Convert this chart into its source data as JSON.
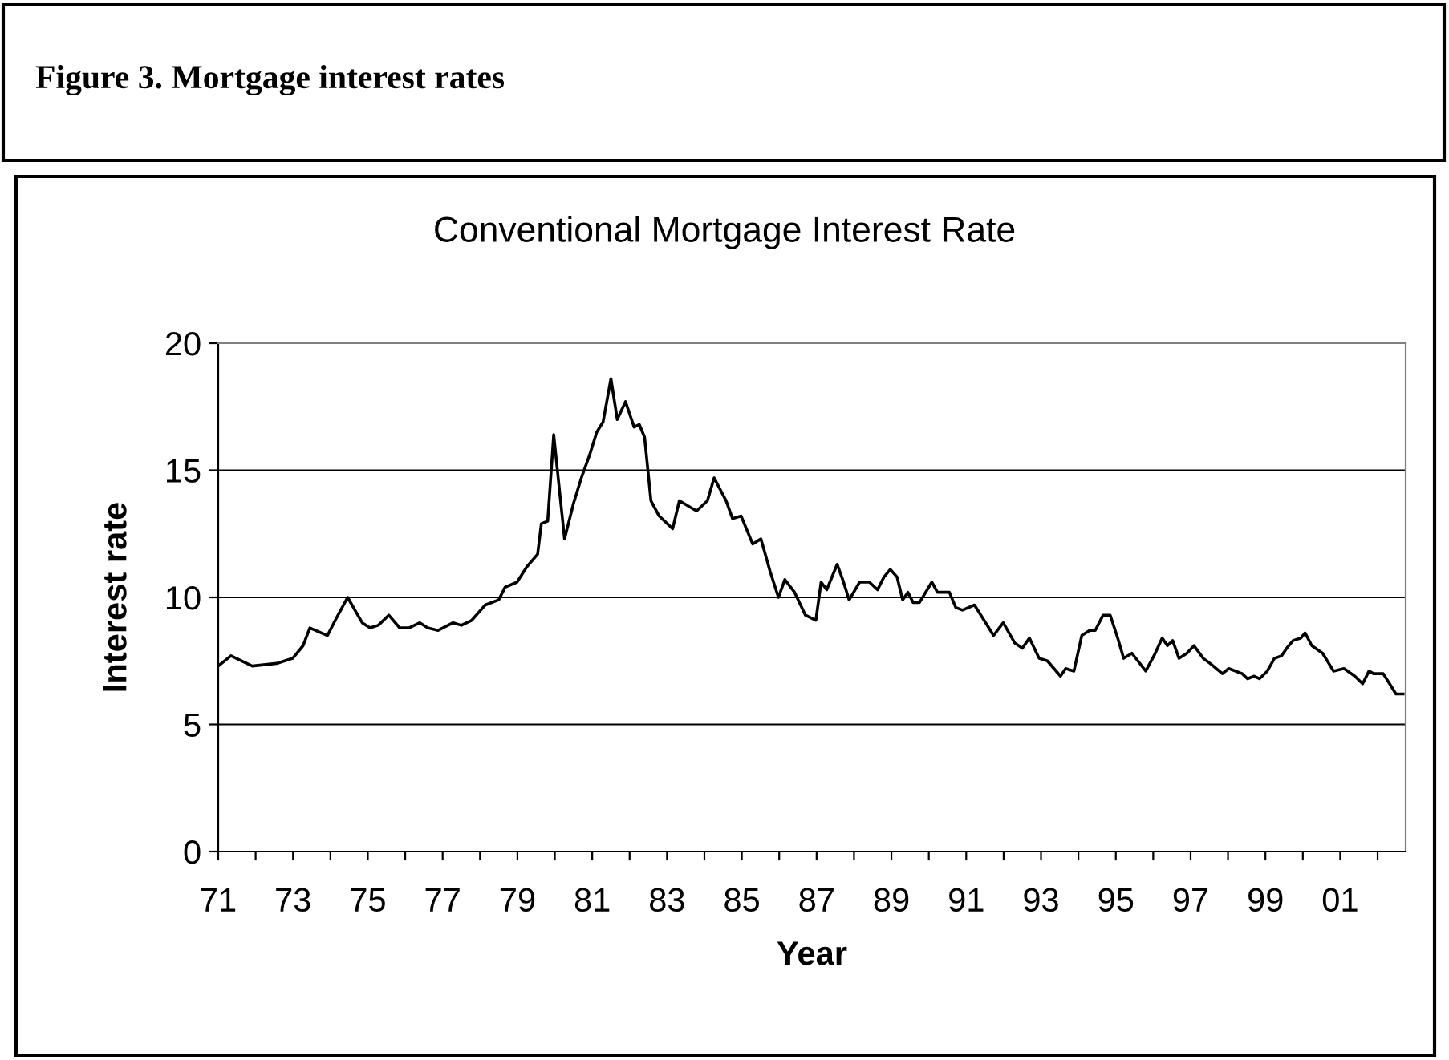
{
  "chart_data": {
    "type": "line",
    "title": "Figure 3. Mortgage interest rates",
    "subtitle": "Conventional Mortgage Interest Rate",
    "xlabel": "Year",
    "ylabel": "Interest rate",
    "xlim": [
      1971,
      2002.75
    ],
    "xticks": [
      {
        "value": 1971,
        "label": "71"
      },
      {
        "value": 1972,
        "label": null
      },
      {
        "value": 1973,
        "label": "73"
      },
      {
        "value": 1974,
        "label": null
      },
      {
        "value": 1975,
        "label": "75"
      },
      {
        "value": 1976,
        "label": null
      },
      {
        "value": 1977,
        "label": "77"
      },
      {
        "value": 1978,
        "label": null
      },
      {
        "value": 1979,
        "label": "79"
      },
      {
        "value": 1980,
        "label": null
      },
      {
        "value": 1981,
        "label": "81"
      },
      {
        "value": 1982,
        "label": null
      },
      {
        "value": 1983,
        "label": "83"
      },
      {
        "value": 1984,
        "label": null
      },
      {
        "value": 1985,
        "label": "85"
      },
      {
        "value": 1986,
        "label": null
      },
      {
        "value": 1987,
        "label": "87"
      },
      {
        "value": 1988,
        "label": null
      },
      {
        "value": 1989,
        "label": "89"
      },
      {
        "value": 1990,
        "label": null
      },
      {
        "value": 1991,
        "label": "91"
      },
      {
        "value": 1992,
        "label": null
      },
      {
        "value": 1993,
        "label": "93"
      },
      {
        "value": 1994,
        "label": null
      },
      {
        "value": 1995,
        "label": "95"
      },
      {
        "value": 1996,
        "label": null
      },
      {
        "value": 1997,
        "label": "97"
      },
      {
        "value": 1998,
        "label": null
      },
      {
        "value": 1999,
        "label": "99"
      },
      {
        "value": 2000,
        "label": null
      },
      {
        "value": 2001,
        "label": "01"
      },
      {
        "value": 2002,
        "label": null
      }
    ],
    "ylim": [
      0,
      20
    ],
    "yticks": [
      0,
      5,
      10,
      15,
      20
    ],
    "grid": "y",
    "marker": "none",
    "line_style": "solid",
    "series": [
      {
        "color": "#000000",
        "x": [
          1971.0,
          1971.34,
          1971.91,
          1972.56,
          1972.99,
          1973.27,
          1973.45,
          1973.92,
          1974.13,
          1974.46,
          1974.85,
          1975.06,
          1975.28,
          1975.56,
          1975.85,
          1976.1,
          1976.39,
          1976.6,
          1976.88,
          1977.28,
          1977.5,
          1977.78,
          1978.14,
          1978.5,
          1978.67,
          1978.99,
          1979.25,
          1979.54,
          1979.64,
          1979.81,
          1979.97,
          1980.26,
          1980.5,
          1980.71,
          1980.93,
          1981.12,
          1981.29,
          1981.5,
          1981.67,
          1981.89,
          1982.12,
          1982.26,
          1982.4,
          1982.57,
          1982.79,
          1983.15,
          1983.33,
          1983.79,
          1984.08,
          1984.26,
          1984.58,
          1984.75,
          1984.98,
          1985.29,
          1985.51,
          1985.76,
          1985.98,
          1986.15,
          1986.41,
          1986.7,
          1986.98,
          1987.12,
          1987.27,
          1987.55,
          1987.72,
          1987.87,
          1988.15,
          1988.41,
          1988.63,
          1988.8,
          1988.97,
          1989.15,
          1989.3,
          1989.44,
          1989.58,
          1989.75,
          1990.08,
          1990.23,
          1990.55,
          1990.72,
          1990.9,
          1991.22,
          1991.52,
          1991.73,
          1991.99,
          1992.3,
          1992.5,
          1992.69,
          1992.95,
          1993.17,
          1993.52,
          1993.66,
          1993.88,
          1994.09,
          1994.3,
          1994.45,
          1994.66,
          1994.85,
          1995.05,
          1995.21,
          1995.43,
          1995.8,
          1996.02,
          1996.24,
          1996.38,
          1996.52,
          1996.69,
          1996.9,
          1997.09,
          1997.34,
          1997.52,
          1997.85,
          1998.02,
          1998.38,
          1998.52,
          1998.7,
          1998.84,
          1999.05,
          1999.24,
          1999.43,
          1999.57,
          1999.74,
          1999.95,
          2000.06,
          2000.24,
          2000.53,
          2000.82,
          2001.1,
          2001.39,
          2001.6,
          2001.77,
          2001.89,
          2002.15,
          2002.32,
          2002.49,
          2002.68
        ],
        "values": [
          7.3,
          7.7,
          7.3,
          7.4,
          7.6,
          8.1,
          8.8,
          8.5,
          9.1,
          10.0,
          9.0,
          8.8,
          8.9,
          9.3,
          8.8,
          8.8,
          9.0,
          8.8,
          8.7,
          9.0,
          8.9,
          9.1,
          9.7,
          9.9,
          10.4,
          10.6,
          11.2,
          11.7,
          12.9,
          13.0,
          16.4,
          12.3,
          13.7,
          14.7,
          15.6,
          16.5,
          16.9,
          18.6,
          17.0,
          17.7,
          16.7,
          16.8,
          16.3,
          13.8,
          13.2,
          12.7,
          13.8,
          13.4,
          13.8,
          14.7,
          13.8,
          13.1,
          13.2,
          12.1,
          12.3,
          11.0,
          10.0,
          10.7,
          10.2,
          9.3,
          9.1,
          10.6,
          10.3,
          11.3,
          10.6,
          9.9,
          10.6,
          10.6,
          10.3,
          10.8,
          11.1,
          10.8,
          9.9,
          10.2,
          9.8,
          9.8,
          10.6,
          10.2,
          10.2,
          9.6,
          9.5,
          9.7,
          9.0,
          8.5,
          9.0,
          8.2,
          8.0,
          8.4,
          7.6,
          7.5,
          6.9,
          7.2,
          7.1,
          8.5,
          8.7,
          8.7,
          9.3,
          9.3,
          8.4,
          7.6,
          7.8,
          7.1,
          7.7,
          8.4,
          8.1,
          8.3,
          7.6,
          7.8,
          8.1,
          7.6,
          7.4,
          7.0,
          7.2,
          7.0,
          6.8,
          6.9,
          6.8,
          7.1,
          7.6,
          7.7,
          8.0,
          8.3,
          8.4,
          8.6,
          8.1,
          7.8,
          7.1,
          7.2,
          6.9,
          6.6,
          7.1,
          7.0,
          7.0,
          6.6,
          6.2,
          6.2
        ]
      }
    ]
  }
}
